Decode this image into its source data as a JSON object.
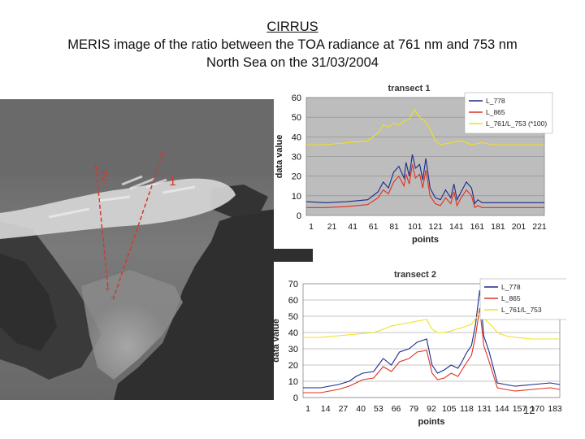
{
  "slide": {
    "title_line1": "CIRRUS",
    "title_line2": "MERIS image of the ratio between the TOA radiance at 761 nm and 753 nm",
    "title_line3": "North Sea on the 31/03/2004",
    "page_number": "12"
  },
  "image": {
    "transect_labels": [
      "2",
      "1"
    ],
    "transect_color": "#d23a2a"
  },
  "chart_data": [
    {
      "type": "line",
      "title": "transect 1",
      "xlabel": "points",
      "ylabel": "data value",
      "ylim": [
        0,
        60
      ],
      "yticks": [
        0,
        10,
        20,
        30,
        40,
        50,
        60
      ],
      "xticks": [
        "1",
        "21",
        "41",
        "61",
        "81",
        "101",
        "121",
        "141",
        "161",
        "181",
        "201",
        "221"
      ],
      "xlim": [
        1,
        230
      ],
      "grid": true,
      "legend": "top-right",
      "plot_bg": "#bdbdbd",
      "series": [
        {
          "name": "L_778",
          "color": "#1a2a8a",
          "x": [
            1,
            20,
            40,
            60,
            70,
            75,
            80,
            85,
            90,
            95,
            97,
            100,
            103,
            106,
            110,
            113,
            116,
            120,
            125,
            130,
            135,
            140,
            143,
            146,
            150,
            155,
            160,
            163,
            166,
            170,
            180,
            200,
            230
          ],
          "values": [
            7,
            6.5,
            7,
            8,
            12,
            17,
            14,
            22,
            25,
            19,
            27,
            20,
            31,
            24,
            26,
            18,
            29,
            14,
            9,
            8,
            13,
            9,
            16,
            8,
            12,
            17,
            14,
            6,
            8,
            6.5,
            6.5,
            6.5,
            6.5
          ]
        },
        {
          "name": "L_865",
          "color": "#e03020",
          "x": [
            1,
            20,
            40,
            60,
            70,
            75,
            80,
            85,
            90,
            95,
            97,
            100,
            103,
            106,
            110,
            113,
            116,
            120,
            125,
            130,
            135,
            140,
            143,
            146,
            150,
            155,
            160,
            163,
            166,
            170,
            180,
            200,
            230
          ],
          "values": [
            4,
            4,
            4.5,
            5.5,
            9,
            13,
            11,
            17,
            20,
            15,
            21,
            16,
            26,
            19,
            21,
            14,
            23,
            10,
            6,
            5,
            9,
            6,
            12,
            5,
            9,
            13,
            10,
            4,
            5,
            4,
            4,
            4,
            4
          ]
        },
        {
          "name": "L_761/L_753 (*100)",
          "color": "#f0e020",
          "x": [
            1,
            20,
            40,
            60,
            70,
            75,
            80,
            85,
            90,
            95,
            100,
            105,
            110,
            115,
            120,
            125,
            130,
            140,
            150,
            160,
            170,
            180,
            200,
            230
          ],
          "values": [
            36,
            36,
            37,
            38,
            42,
            46,
            45,
            47,
            46,
            48,
            49,
            54,
            50,
            48,
            44,
            38,
            36,
            37,
            38,
            36,
            37,
            36,
            36,
            36
          ]
        }
      ]
    },
    {
      "type": "line",
      "title": "transect 2",
      "xlabel": "points",
      "ylabel": "data value",
      "ylim": [
        0,
        70
      ],
      "yticks": [
        0,
        10,
        20,
        30,
        40,
        50,
        60,
        70
      ],
      "xticks": [
        "1",
        "14",
        "27",
        "40",
        "53",
        "66",
        "79",
        "92",
        "105",
        "118",
        "131",
        "144",
        "157",
        "170",
        "183"
      ],
      "xlim": [
        1,
        190
      ],
      "grid": true,
      "legend": "top-right",
      "plot_bg": "#ffffff",
      "series": [
        {
          "name": "L_778",
          "color": "#1a2a8a",
          "x": [
            1,
            14,
            27,
            35,
            40,
            45,
            53,
            60,
            66,
            72,
            79,
            85,
            92,
            96,
            100,
            105,
            110,
            115,
            118,
            121,
            125,
            128,
            131,
            134,
            138,
            144,
            150,
            157,
            170,
            183,
            190
          ],
          "values": [
            6,
            6,
            8,
            10,
            13,
            15,
            16,
            24,
            20,
            28,
            30,
            34,
            36,
            20,
            15,
            17,
            20,
            18,
            22,
            27,
            32,
            45,
            66,
            38,
            28,
            9,
            8,
            7,
            8,
            9,
            8
          ]
        },
        {
          "name": "L_865",
          "color": "#e03020",
          "x": [
            1,
            14,
            27,
            35,
            40,
            45,
            53,
            60,
            66,
            72,
            79,
            85,
            92,
            96,
            100,
            105,
            110,
            115,
            118,
            121,
            125,
            128,
            131,
            134,
            138,
            144,
            150,
            157,
            170,
            183,
            190
          ],
          "values": [
            3,
            3,
            5,
            7,
            9,
            11,
            12,
            19,
            16,
            22,
            24,
            28,
            29,
            15,
            11,
            12,
            15,
            13,
            17,
            21,
            26,
            38,
            55,
            32,
            22,
            6,
            5,
            4,
            5,
            6,
            5
          ]
        },
        {
          "name": "L_761/L_753",
          "color": "#f0e020",
          "x": [
            1,
            14,
            27,
            40,
            53,
            60,
            66,
            72,
            79,
            85,
            92,
            96,
            100,
            105,
            110,
            118,
            125,
            131,
            135,
            140,
            144,
            150,
            157,
            170,
            183,
            190
          ],
          "values": [
            37,
            37,
            38,
            39,
            40,
            42,
            44,
            45,
            46,
            47,
            48,
            42,
            40,
            40,
            41,
            43,
            45,
            52,
            48,
            44,
            40,
            38,
            37,
            36,
            36,
            36
          ]
        }
      ]
    }
  ]
}
